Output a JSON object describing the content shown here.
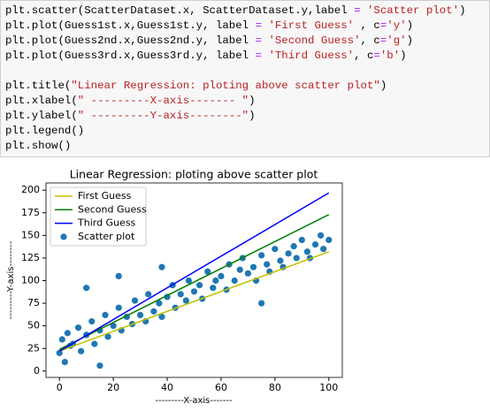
{
  "code": {
    "blocks": [
      {
        "lines": [
          [
            {
              "text": "plt.scatter(ScatterDataset.x, ScatterDataset.y,label ",
              "color": "#000000"
            },
            {
              "text": "=",
              "color": "#aa22ff"
            },
            {
              "text": " ",
              "color": "#000000"
            },
            {
              "text": "'Scatter plot'",
              "color": "#ba2121"
            },
            {
              "text": ")",
              "color": "#000000"
            }
          ],
          [
            {
              "text": "plt.plot(Guess1st.x,Guess1st.y, label ",
              "color": "#000000"
            },
            {
              "text": "=",
              "color": "#aa22ff"
            },
            {
              "text": " ",
              "color": "#000000"
            },
            {
              "text": "'First Guess'",
              "color": "#ba2121"
            },
            {
              "text": " , c",
              "color": "#000000"
            },
            {
              "text": "=",
              "color": "#aa22ff"
            },
            {
              "text": "'y'",
              "color": "#ba2121"
            },
            {
              "text": ")",
              "color": "#000000"
            }
          ],
          [
            {
              "text": "plt.plot(Guess2nd.x,Guess2nd.y, label ",
              "color": "#000000"
            },
            {
              "text": "=",
              "color": "#aa22ff"
            },
            {
              "text": " ",
              "color": "#000000"
            },
            {
              "text": "'Second Guess'",
              "color": "#ba2121"
            },
            {
              "text": ", c",
              "color": "#000000"
            },
            {
              "text": "=",
              "color": "#aa22ff"
            },
            {
              "text": "'g'",
              "color": "#ba2121"
            },
            {
              "text": ")",
              "color": "#000000"
            }
          ],
          [
            {
              "text": "plt.plot(Guess3rd.x,Guess3rd.y, label ",
              "color": "#000000"
            },
            {
              "text": "=",
              "color": "#aa22ff"
            },
            {
              "text": " ",
              "color": "#000000"
            },
            {
              "text": "'Third Guess'",
              "color": "#ba2121"
            },
            {
              "text": ", c",
              "color": "#000000"
            },
            {
              "text": "=",
              "color": "#aa22ff"
            },
            {
              "text": "'b'",
              "color": "#ba2121"
            },
            {
              "text": ")",
              "color": "#000000"
            }
          ]
        ]
      },
      {
        "lines": [
          [
            {
              "text": "plt.title(",
              "color": "#000000"
            },
            {
              "text": "\"Linear Regression: ploting above scatter plot\"",
              "color": "#ba2121"
            },
            {
              "text": ")",
              "color": "#000000"
            }
          ],
          [
            {
              "text": "plt.xlabel(",
              "color": "#000000"
            },
            {
              "text": "\" ---------X-axis------- \"",
              "color": "#ba2121"
            },
            {
              "text": ")",
              "color": "#000000"
            }
          ],
          [
            {
              "text": "plt.ylabel(",
              "color": "#000000"
            },
            {
              "text": "\" ---------Y-axis--------\"",
              "color": "#ba2121"
            },
            {
              "text": ")",
              "color": "#000000"
            }
          ],
          [
            {
              "text": "plt.legend()",
              "color": "#000000"
            }
          ],
          [
            {
              "text": "plt.show()",
              "color": "#000000"
            }
          ]
        ]
      }
    ]
  },
  "chart_data": {
    "type": "scatter",
    "title": "Linear Regression: ploting above scatter plot",
    "x_label": " ---------X-axis------- ",
    "y_label": " ---------Y-axis--------",
    "xlim": [
      -5,
      105
    ],
    "ylim": [
      -7,
      208
    ],
    "xticks": [
      0,
      20,
      40,
      60,
      80,
      100
    ],
    "yticks": [
      0,
      25,
      50,
      75,
      100,
      125,
      150,
      175,
      200
    ],
    "legend": "upper left",
    "lines": [
      {
        "name": "First Guess",
        "color": "#bfbf00",
        "x": [
          0,
          100
        ],
        "values": [
          22,
          132
        ]
      },
      {
        "name": "Second Guess",
        "color": "#008000",
        "x": [
          0,
          100
        ],
        "values": [
          24,
          173
        ]
      },
      {
        "name": "Third Guess",
        "color": "#0000ff",
        "x": [
          0,
          100
        ],
        "values": [
          22,
          197
        ]
      }
    ],
    "scatter": {
      "name": "Scatter plot",
      "color": "#1f77b4",
      "x": [
        0,
        1,
        2,
        3,
        4,
        5,
        7,
        8,
        10,
        12,
        13,
        15,
        17,
        18,
        20,
        22,
        23,
        25,
        27,
        28,
        30,
        32,
        33,
        35,
        37,
        38,
        40,
        42,
        43,
        45,
        47,
        48,
        50,
        52,
        53,
        55,
        57,
        58,
        60,
        62,
        63,
        65,
        67,
        68,
        70,
        72,
        73,
        75,
        77,
        78,
        80,
        82,
        83,
        85,
        87,
        88,
        90,
        92,
        93,
        95,
        97,
        98,
        100,
        22,
        38,
        15,
        75,
        10
      ],
      "y": [
        20,
        35,
        10,
        42,
        28,
        30,
        48,
        22,
        40,
        55,
        30,
        45,
        62,
        38,
        50,
        70,
        45,
        60,
        52,
        78,
        62,
        55,
        85,
        66,
        75,
        60,
        82,
        95,
        70,
        85,
        78,
        100,
        88,
        95,
        80,
        110,
        92,
        100,
        105,
        90,
        118,
        100,
        112,
        125,
        108,
        115,
        100,
        128,
        118,
        110,
        135,
        122,
        115,
        130,
        138,
        125,
        145,
        132,
        125,
        140,
        150,
        135,
        145,
        105,
        115,
        6,
        75,
        92
      ]
    }
  }
}
